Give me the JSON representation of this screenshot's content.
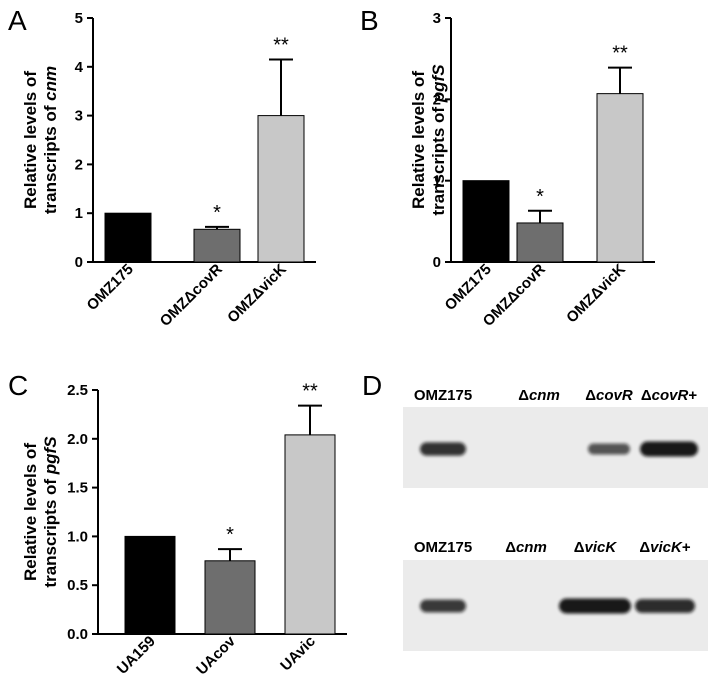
{
  "chart_data": [
    {
      "panel": "A",
      "type": "bar",
      "ylabel_line1": "Relative levels of",
      "ylabel_line2_prefix": "transcripts of ",
      "ylabel_gene": "cnm",
      "ylim": [
        0,
        5
      ],
      "yticks": [
        "0",
        "1",
        "2",
        "3",
        "4",
        "5"
      ],
      "categories": [
        "OMZ175",
        "OMZΔcovR",
        "OMZΔvicK"
      ],
      "values": [
        1.0,
        0.67,
        3.0
      ],
      "errors": [
        0,
        0.05,
        1.15
      ],
      "significance": [
        "",
        "*",
        "**"
      ],
      "bar_colors": [
        "#000000",
        "#6e6e6e",
        "#c8c8c8"
      ]
    },
    {
      "panel": "B",
      "type": "bar",
      "ylabel_line1": "Relative levels of",
      "ylabel_line2_prefix": "transcripts of ",
      "ylabel_gene": "pgfS",
      "ylim": [
        0,
        3
      ],
      "yticks": [
        "0",
        "1",
        "2",
        "3"
      ],
      "categories": [
        "OMZ175",
        "OMZΔcovR",
        "OMZΔvicK"
      ],
      "values": [
        1.0,
        0.48,
        2.07
      ],
      "errors": [
        0,
        0.15,
        0.32
      ],
      "significance": [
        "",
        "*",
        "**"
      ],
      "bar_colors": [
        "#000000",
        "#6e6e6e",
        "#c8c8c8"
      ]
    },
    {
      "panel": "C",
      "type": "bar",
      "ylabel_line1": "Relative levels of",
      "ylabel_line2_prefix": "transcripts of ",
      "ylabel_gene": "pgfS",
      "ylim": [
        0,
        2.5
      ],
      "yticks": [
        "0.0",
        "0.5",
        "1.0",
        "1.5",
        "2.0",
        "2.5"
      ],
      "categories": [
        "UA159",
        "UAcov",
        "UAvic"
      ],
      "values": [
        1.0,
        0.75,
        2.04
      ],
      "errors": [
        0,
        0.12,
        0.3
      ],
      "significance": [
        "",
        "*",
        "**"
      ],
      "bar_colors": [
        "#000000",
        "#6e6e6e",
        "#c8c8c8"
      ]
    }
  ],
  "blot_panel": {
    "letter": "D",
    "top_row": [
      {
        "prefix": "",
        "italic": "",
        "text": "OMZ175",
        "suffix": "",
        "band": 0.8
      },
      {
        "prefix": "Δ",
        "italic": "cnm",
        "text": "",
        "suffix": "",
        "band": 0
      },
      {
        "prefix": "Δ",
        "italic": "covR",
        "text": "",
        "suffix": "",
        "band": 0.55
      },
      {
        "prefix": "Δ",
        "italic": "covR",
        "text": "",
        "suffix": "+",
        "band": 1.0
      }
    ],
    "bottom_row": [
      {
        "prefix": "",
        "italic": "",
        "text": "OMZ175",
        "suffix": "",
        "band": 0.75
      },
      {
        "prefix": "Δ",
        "italic": "cnm",
        "text": "",
        "suffix": "",
        "band": 0
      },
      {
        "prefix": "Δ",
        "italic": "vicK",
        "text": "",
        "suffix": "",
        "band": 1.0
      },
      {
        "prefix": "Δ",
        "italic": "vicK",
        "text": "",
        "suffix": "+",
        "band": 0.85
      }
    ]
  }
}
